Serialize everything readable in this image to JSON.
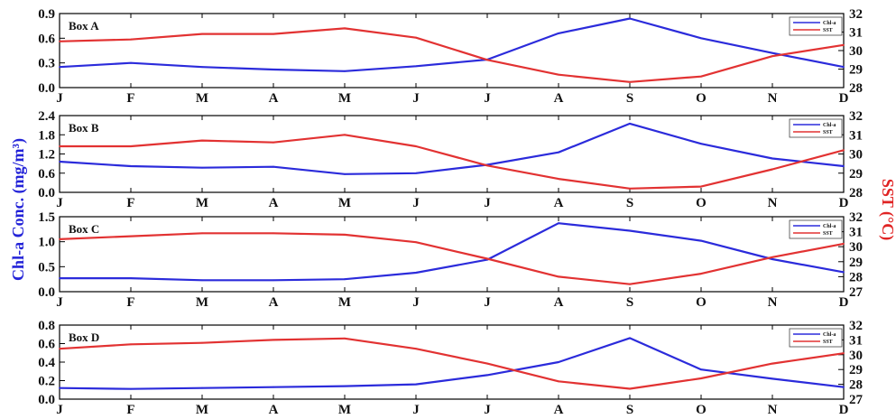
{
  "figure": {
    "left_axis_label": "Chl-a Conc. (mg/m³)",
    "right_axis_label": "SST (°C)"
  },
  "colors": {
    "chl": "#2b2bdb",
    "sst": "#e23232"
  },
  "chart_data": [
    {
      "type": "line",
      "title": "Box A",
      "categories": [
        "J",
        "F",
        "M",
        "A",
        "M",
        "J",
        "J",
        "A",
        "S",
        "O",
        "N",
        "D"
      ],
      "y_left": {
        "label": "Chl-a Conc. (mg/m³)",
        "lim": [
          0,
          0.9
        ],
        "ticks": [
          "0.0",
          "0.3",
          "0.6",
          "0.9"
        ]
      },
      "y_right": {
        "label": "SST (°C)",
        "lim": [
          28,
          32
        ],
        "ticks": [
          "28",
          "29",
          "30",
          "31",
          "32"
        ]
      },
      "legend": {
        "position": "top-right",
        "entries": [
          "Chl-a",
          "SST"
        ]
      },
      "series": [
        {
          "name": "Chl-a",
          "axis": "left",
          "values": [
            0.25,
            0.3,
            0.25,
            0.22,
            0.2,
            0.26,
            0.34,
            0.66,
            0.84,
            0.6,
            0.42,
            0.25
          ]
        },
        {
          "name": "SST",
          "axis": "right",
          "values": [
            30.5,
            30.6,
            30.9,
            30.9,
            31.2,
            30.7,
            29.5,
            28.7,
            28.3,
            28.6,
            29.7,
            30.3
          ]
        }
      ]
    },
    {
      "type": "line",
      "title": "Box B",
      "categories": [
        "J",
        "F",
        "M",
        "A",
        "M",
        "J",
        "J",
        "A",
        "S",
        "O",
        "N",
        "D"
      ],
      "y_left": {
        "label": "Chl-a Conc. (mg/m³)",
        "lim": [
          0,
          2.4
        ],
        "ticks": [
          "0.0",
          "0.6",
          "1.2",
          "1.8",
          "2.4"
        ]
      },
      "y_right": {
        "label": "SST (°C)",
        "lim": [
          28,
          32
        ],
        "ticks": [
          "28",
          "29",
          "30",
          "31",
          "32"
        ]
      },
      "legend": {
        "position": "top-right",
        "entries": [
          "Chl-a",
          "SST"
        ]
      },
      "series": [
        {
          "name": "Chl-a",
          "axis": "left",
          "values": [
            0.96,
            0.82,
            0.77,
            0.8,
            0.57,
            0.6,
            0.86,
            1.25,
            2.15,
            1.52,
            1.06,
            0.82
          ]
        },
        {
          "name": "SST",
          "axis": "right",
          "values": [
            30.4,
            30.4,
            30.7,
            30.6,
            31.0,
            30.4,
            29.4,
            28.7,
            28.2,
            28.3,
            29.2,
            30.2
          ]
        }
      ]
    },
    {
      "type": "line",
      "title": "Box C",
      "categories": [
        "J",
        "F",
        "M",
        "A",
        "M",
        "J",
        "J",
        "A",
        "S",
        "O",
        "N",
        "D"
      ],
      "y_left": {
        "label": "Chl-a Conc. (mg/m³)",
        "lim": [
          0,
          1.5
        ],
        "ticks": [
          "0.0",
          "0.5",
          "1.0",
          "1.5"
        ]
      },
      "y_right": {
        "label": "SST (°C)",
        "lim": [
          27,
          32
        ],
        "ticks": [
          "27",
          "28",
          "29",
          "30",
          "31",
          "32"
        ]
      },
      "legend": {
        "position": "top-right",
        "entries": [
          "Chl-a",
          "SST"
        ]
      },
      "series": [
        {
          "name": "Chl-a",
          "axis": "left",
          "values": [
            0.27,
            0.27,
            0.23,
            0.23,
            0.25,
            0.38,
            0.64,
            1.37,
            1.22,
            1.02,
            0.65,
            0.39
          ]
        },
        {
          "name": "SST",
          "axis": "right",
          "values": [
            30.5,
            30.7,
            30.9,
            30.9,
            30.8,
            30.3,
            29.2,
            28.0,
            27.5,
            28.2,
            29.3,
            30.2
          ]
        }
      ]
    },
    {
      "type": "line",
      "title": "Box D",
      "categories": [
        "J",
        "F",
        "M",
        "A",
        "M",
        "J",
        "J",
        "A",
        "S",
        "O",
        "N",
        "D"
      ],
      "y_left": {
        "label": "Chl-a Conc. (mg/m³)",
        "lim": [
          0,
          0.8
        ],
        "ticks": [
          "0.0",
          "0.2",
          "0.4",
          "0.6",
          "0.8"
        ]
      },
      "y_right": {
        "label": "SST (°C)",
        "lim": [
          27,
          32
        ],
        "ticks": [
          "27",
          "28",
          "29",
          "30",
          "31",
          "32"
        ]
      },
      "legend": {
        "position": "top-right",
        "entries": [
          "Chl-a",
          "SST"
        ]
      },
      "series": [
        {
          "name": "Chl-a",
          "axis": "left",
          "values": [
            0.12,
            0.11,
            0.12,
            0.13,
            0.14,
            0.16,
            0.26,
            0.4,
            0.66,
            0.32,
            0.22,
            0.13
          ]
        },
        {
          "name": "SST",
          "axis": "right",
          "values": [
            30.4,
            30.7,
            30.8,
            31.0,
            31.1,
            30.4,
            29.4,
            28.2,
            27.7,
            28.4,
            29.4,
            30.1
          ]
        }
      ]
    }
  ]
}
